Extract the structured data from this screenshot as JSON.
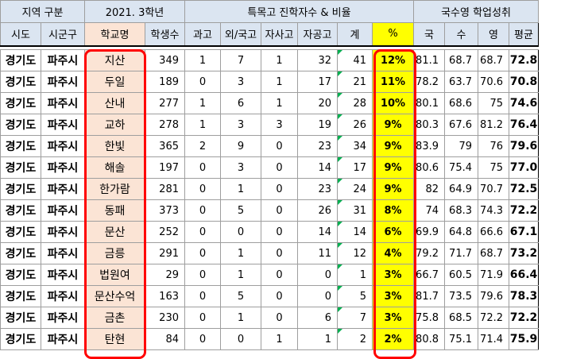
{
  "header_groups": {
    "region": "지역 구분",
    "year_grade": "2021. 3학년",
    "special": "특목고 진학자수 & 비율",
    "scores": "국수영 학업성취"
  },
  "columns": [
    "시도",
    "시군구",
    "학교명",
    "학생수",
    "과고",
    "외/국고",
    "자사고",
    "자공고",
    "계",
    "%",
    "국",
    "수",
    "영",
    "평균"
  ],
  "rows": [
    {
      "sido": "경기도",
      "sigungu": "파주시",
      "school": "지산",
      "students": "349",
      "sci": "1",
      "foreign": "7",
      "jasa": "1",
      "jagong": "32",
      "total": "41",
      "pct": "12%",
      "kor": "81.1",
      "math": "68.7",
      "eng": "68.7",
      "avg": "72.8"
    },
    {
      "sido": "경기도",
      "sigungu": "파주시",
      "school": "두일",
      "students": "189",
      "sci": "0",
      "foreign": "3",
      "jasa": "1",
      "jagong": "17",
      "total": "21",
      "pct": "11%",
      "kor": "78.2",
      "math": "63.7",
      "eng": "70.6",
      "avg": "70.8"
    },
    {
      "sido": "경기도",
      "sigungu": "파주시",
      "school": "산내",
      "students": "277",
      "sci": "1",
      "foreign": "6",
      "jasa": "1",
      "jagong": "20",
      "total": "28",
      "pct": "10%",
      "kor": "80.1",
      "math": "68.6",
      "eng": "75",
      "avg": "74.6"
    },
    {
      "sido": "경기도",
      "sigungu": "파주시",
      "school": "교하",
      "students": "278",
      "sci": "1",
      "foreign": "3",
      "jasa": "3",
      "jagong": "19",
      "total": "26",
      "pct": "9%",
      "kor": "80.3",
      "math": "67.6",
      "eng": "81.2",
      "avg": "76.4"
    },
    {
      "sido": "경기도",
      "sigungu": "파주시",
      "school": "한빛",
      "students": "365",
      "sci": "2",
      "foreign": "9",
      "jasa": "0",
      "jagong": "23",
      "total": "34",
      "pct": "9%",
      "kor": "83.9",
      "math": "79",
      "eng": "76",
      "avg": "79.6"
    },
    {
      "sido": "경기도",
      "sigungu": "파주시",
      "school": "해솔",
      "students": "197",
      "sci": "0",
      "foreign": "3",
      "jasa": "0",
      "jagong": "14",
      "total": "17",
      "pct": "9%",
      "kor": "80.6",
      "math": "75.4",
      "eng": "75",
      "avg": "77.0"
    },
    {
      "sido": "경기도",
      "sigungu": "파주시",
      "school": "한가람",
      "students": "281",
      "sci": "0",
      "foreign": "1",
      "jasa": "0",
      "jagong": "23",
      "total": "24",
      "pct": "9%",
      "kor": "82",
      "math": "64.9",
      "eng": "70.7",
      "avg": "72.5"
    },
    {
      "sido": "경기도",
      "sigungu": "파주시",
      "school": "동패",
      "students": "373",
      "sci": "0",
      "foreign": "5",
      "jasa": "0",
      "jagong": "26",
      "total": "31",
      "pct": "8%",
      "kor": "74",
      "math": "68.3",
      "eng": "74.3",
      "avg": "72.2"
    },
    {
      "sido": "경기도",
      "sigungu": "파주시",
      "school": "문산",
      "students": "252",
      "sci": "0",
      "foreign": "0",
      "jasa": "0",
      "jagong": "14",
      "total": "14",
      "pct": "6%",
      "kor": "69.9",
      "math": "64.8",
      "eng": "66.6",
      "avg": "67.1"
    },
    {
      "sido": "경기도",
      "sigungu": "파주시",
      "school": "금릉",
      "students": "291",
      "sci": "0",
      "foreign": "1",
      "jasa": "0",
      "jagong": "11",
      "total": "12",
      "pct": "4%",
      "kor": "79.2",
      "math": "71.7",
      "eng": "68.7",
      "avg": "73.2"
    },
    {
      "sido": "경기도",
      "sigungu": "파주시",
      "school": "법원여",
      "students": "29",
      "sci": "0",
      "foreign": "1",
      "jasa": "0",
      "jagong": "0",
      "total": "1",
      "pct": "3%",
      "kor": "66.7",
      "math": "60.5",
      "eng": "71.9",
      "avg": "66.4"
    },
    {
      "sido": "경기도",
      "sigungu": "파주시",
      "school": "문산수억",
      "students": "163",
      "sci": "0",
      "foreign": "5",
      "jasa": "0",
      "jagong": "0",
      "total": "5",
      "pct": "3%",
      "kor": "81.7",
      "math": "73.5",
      "eng": "79.6",
      "avg": "78.3"
    },
    {
      "sido": "경기도",
      "sigungu": "파주시",
      "school": "금촌",
      "students": "230",
      "sci": "0",
      "foreign": "1",
      "jasa": "0",
      "jagong": "6",
      "total": "7",
      "pct": "3%",
      "kor": "75.8",
      "math": "68.5",
      "eng": "72.2",
      "avg": "72.2"
    },
    {
      "sido": "경기도",
      "sigungu": "파주시",
      "school": "탄현",
      "students": "84",
      "sci": "0",
      "foreign": "0",
      "jasa": "1",
      "jagong": "1",
      "total": "2",
      "pct": "2%",
      "kor": "80.8",
      "math": "75.1",
      "eng": "71.4",
      "avg": "75.9"
    }
  ],
  "colors": {
    "header_bg": "#dbe5f1",
    "school_bg": "#fbe4d5",
    "pct_bg": "#ffff00",
    "highlight": "#ff0000",
    "indicator": "#00b050"
  }
}
